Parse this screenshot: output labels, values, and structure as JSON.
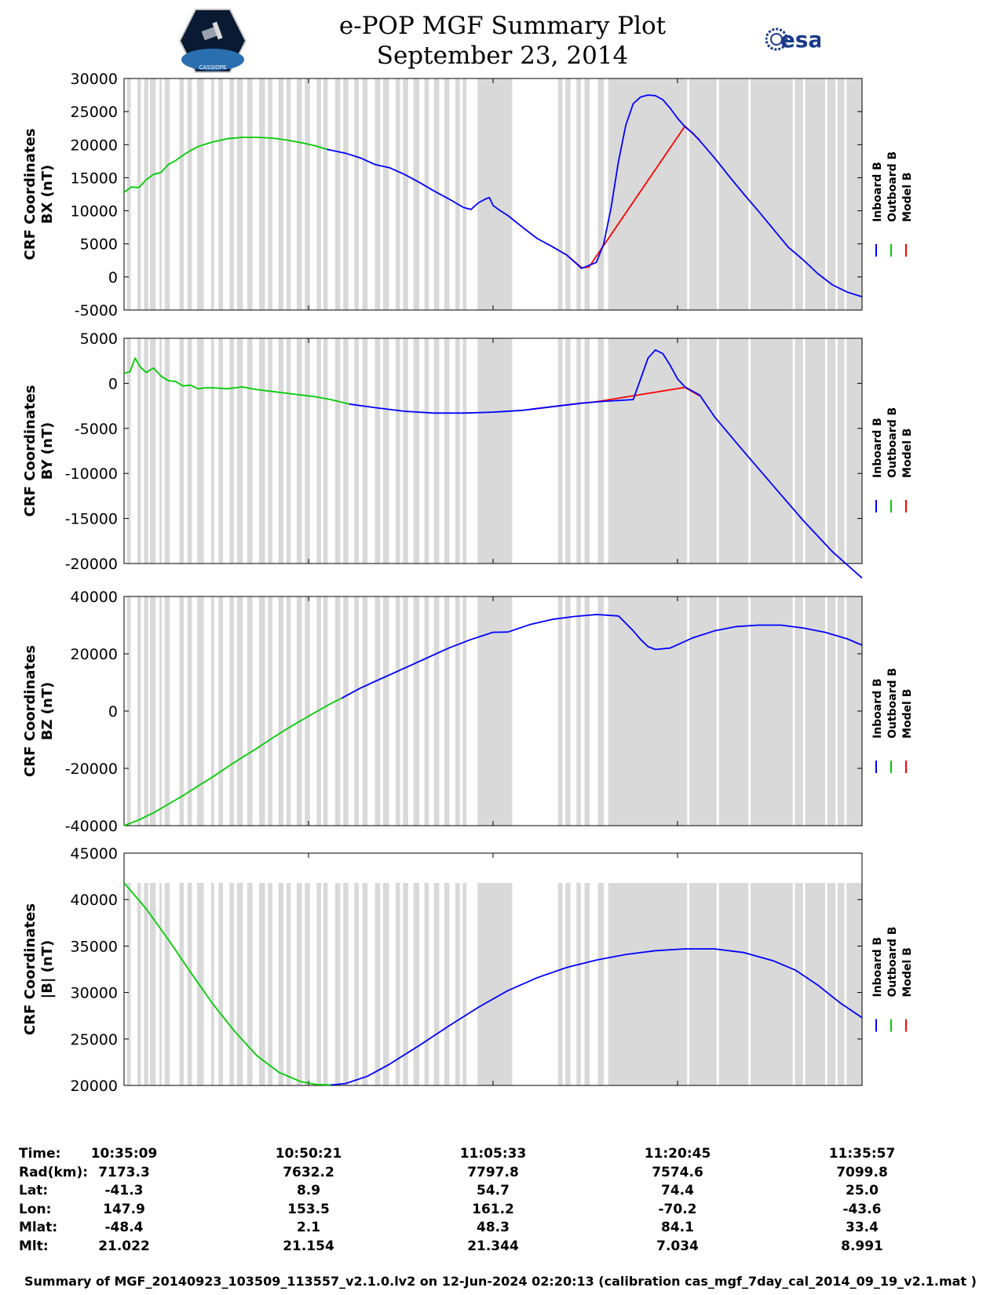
{
  "header": {
    "title": "e-POP MGF Summary Plot",
    "date": "September 23, 2014",
    "logo_left": "CASSIOPE",
    "logo_right": "esa"
  },
  "legend": [
    {
      "label": "Inboard B",
      "color": "#0000ff"
    },
    {
      "label": "Outboard B",
      "color": "#00cc00"
    },
    {
      "label": "Model B",
      "color": "#ff0000"
    }
  ],
  "chart_data": [
    {
      "type": "line",
      "ylabel_line1": "CRF Coordinates",
      "ylabel_line2": "BX (nT)",
      "ylim": [
        -5000,
        30000
      ],
      "yticks": [
        30000,
        25000,
        20000,
        15000,
        10000,
        5000,
        0,
        -5000
      ],
      "xlim": [
        0,
        100
      ],
      "switch_x": 27.5,
      "series": [
        {
          "name": "Outboard B",
          "color": "#00cc00",
          "x": [
            0,
            1,
            2,
            3,
            4,
            5,
            6,
            7,
            8,
            9,
            10,
            12,
            14,
            16,
            18,
            20,
            22,
            24,
            26,
            27.5
          ],
          "y": [
            12800,
            13600,
            13500,
            14700,
            15500,
            15800,
            17000,
            17600,
            18400,
            19100,
            19700,
            20400,
            20900,
            21100,
            21100,
            21000,
            20700,
            20300,
            19800,
            19300
          ]
        },
        {
          "name": "Inboard B",
          "color": "#0000ff",
          "x": [
            27.5,
            30,
            32,
            34,
            36,
            38,
            40,
            42,
            44,
            46,
            47,
            48,
            49,
            49.5,
            50,
            51,
            52,
            54,
            56,
            58,
            60,
            62,
            64,
            65,
            66,
            67,
            68,
            69,
            70,
            71,
            72,
            73,
            74,
            75,
            76,
            77,
            78,
            80,
            82,
            84,
            86,
            88,
            90,
            92,
            94,
            96,
            98,
            100
          ],
          "y": [
            19300,
            18700,
            18000,
            17000,
            16500,
            15500,
            14300,
            13000,
            11800,
            10500,
            10200,
            11200,
            11800,
            12000,
            10800,
            10000,
            9300,
            7500,
            5800,
            4600,
            3300,
            1300,
            2200,
            5000,
            10500,
            17500,
            23000,
            26200,
            27200,
            27500,
            27400,
            26800,
            25500,
            24000,
            22700,
            21800,
            20600,
            18000,
            15200,
            12500,
            9900,
            7200,
            4500,
            2600,
            500,
            -1200,
            -2300,
            -3000
          ]
        },
        {
          "name": "Model B",
          "color": "#ff0000",
          "x": [
            58,
            60,
            62,
            63,
            76,
            78
          ],
          "y": [
            4600,
            3300,
            1400,
            1500,
            22800,
            20700
          ]
        }
      ]
    },
    {
      "type": "line",
      "ylabel_line1": "CRF Coordinates",
      "ylabel_line2": "BY (nT)",
      "ylim": [
        -20000,
        5000
      ],
      "yticks": [
        5000,
        0,
        -5000,
        -10000,
        -15000,
        -20000
      ],
      "xlim": [
        0,
        100
      ],
      "switch_x": 30.5,
      "series": [
        {
          "name": "Outboard B",
          "color": "#00cc00",
          "x": [
            0,
            0.8,
            1.5,
            2.2,
            3,
            4,
            5,
            6,
            7,
            8,
            9,
            10,
            11,
            12,
            14,
            16,
            18,
            20,
            22,
            24,
            26,
            28,
            30.5
          ],
          "y": [
            1100,
            1300,
            2800,
            1800,
            1200,
            1700,
            800,
            300,
            200,
            -300,
            -200,
            -600,
            -500,
            -500,
            -600,
            -400,
            -700,
            -900,
            -1100,
            -1300,
            -1500,
            -1800,
            -2300
          ]
        },
        {
          "name": "Inboard B",
          "color": "#0000ff",
          "x": [
            30.5,
            34,
            38,
            42,
            46,
            50,
            54,
            58,
            62,
            65,
            69,
            70,
            71,
            72,
            73,
            74,
            75,
            76,
            78,
            80,
            84,
            88,
            92,
            96,
            100
          ],
          "y": [
            -2300,
            -2700,
            -3100,
            -3300,
            -3300,
            -3200,
            -3000,
            -2600,
            -2200,
            -2000,
            -1800,
            500,
            2800,
            3700,
            3300,
            2000,
            500,
            -400,
            -1300,
            -3700,
            -7600,
            -11400,
            -15200,
            -18700,
            -21600
          ]
        },
        {
          "name": "Model B",
          "color": "#ff0000",
          "x": [
            55,
            58,
            62,
            64,
            76,
            78
          ],
          "y": [
            -2900,
            -2600,
            -2200,
            -2050,
            -450,
            -1400
          ]
        }
      ]
    },
    {
      "type": "line",
      "ylabel_line1": "CRF Coordinates",
      "ylabel_line2": "BZ (nT)",
      "ylim": [
        -40000,
        40000
      ],
      "yticks": [
        40000,
        20000,
        0,
        -20000,
        -40000
      ],
      "xlim": [
        0,
        100
      ],
      "switch_x": 29.5,
      "series": [
        {
          "name": "Outboard B",
          "color": "#00cc00",
          "x": [
            0,
            2,
            4,
            6,
            8,
            10,
            12,
            14,
            16,
            18,
            20,
            22,
            24,
            26,
            28,
            29.5
          ],
          "y": [
            -40000,
            -38000,
            -35500,
            -32500,
            -29500,
            -26200,
            -23000,
            -19500,
            -16200,
            -13000,
            -9600,
            -6300,
            -3300,
            -300,
            2600,
            4500
          ]
        },
        {
          "name": "Inboard B",
          "color": "#0000ff",
          "x": [
            29.5,
            32,
            35,
            38,
            41,
            44,
            47,
            50,
            52,
            55,
            58,
            61,
            64,
            67,
            69,
            70,
            71,
            72,
            74,
            77,
            80,
            83,
            86,
            89,
            92,
            95,
            98,
            100
          ],
          "y": [
            4500,
            8000,
            11500,
            15000,
            18500,
            22000,
            25000,
            27500,
            27600,
            30200,
            32000,
            33000,
            33700,
            33200,
            28000,
            25000,
            22500,
            21500,
            22000,
            25500,
            28000,
            29500,
            30000,
            30000,
            29000,
            27500,
            25200,
            23000
          ]
        }
      ]
    },
    {
      "type": "line",
      "ylabel_line1": "CRF Coordinates",
      "ylabel_line2": "|B| (nT)",
      "ylim": [
        20000,
        45000
      ],
      "yticks": [
        45000,
        40000,
        35000,
        30000,
        25000,
        20000
      ],
      "xlim": [
        0,
        100
      ],
      "switch_x": 28,
      "series": [
        {
          "name": "Outboard B",
          "color": "#00cc00",
          "x": [
            0,
            3,
            6,
            9,
            12,
            15,
            18,
            21,
            24,
            26,
            28
          ],
          "y": [
            41800,
            39000,
            35700,
            32200,
            28800,
            25800,
            23200,
            21400,
            20400,
            20100,
            20050
          ]
        },
        {
          "name": "Inboard B",
          "color": "#0000ff",
          "x": [
            28,
            30,
            33,
            36,
            40,
            44,
            48,
            52,
            56,
            60,
            64,
            68,
            72,
            76,
            80,
            84,
            88,
            91,
            94,
            97,
            100
          ],
          "y": [
            20050,
            20200,
            21000,
            22300,
            24300,
            26400,
            28400,
            30200,
            31600,
            32700,
            33500,
            34100,
            34500,
            34700,
            34700,
            34300,
            33400,
            32400,
            30800,
            28900,
            27300
          ]
        }
      ]
    }
  ],
  "footer": {
    "rows": [
      {
        "label": "Time:",
        "values": [
          "10:35:09",
          "10:50:21",
          "11:05:33",
          "11:20:45",
          "11:35:57"
        ]
      },
      {
        "label": "Rad(km):",
        "values": [
          "7173.3",
          "7632.2",
          "7797.8",
          "7574.6",
          "7099.8"
        ]
      },
      {
        "label": "Lat:",
        "values": [
          "-41.3",
          "8.9",
          "54.7",
          "74.4",
          "25.0"
        ]
      },
      {
        "label": "Lon:",
        "values": [
          "147.9",
          "153.5",
          "161.2",
          "-70.2",
          "-43.6"
        ]
      },
      {
        "label": "Mlat:",
        "values": [
          "-48.4",
          "2.1",
          "48.3",
          "84.1",
          "33.4"
        ]
      },
      {
        "label": "Mlt:",
        "values": [
          "21.022",
          "21.154",
          "21.344",
          "7.034",
          "8.991"
        ]
      }
    ],
    "note": "Summary of MGF_20140923_103509_113557_v2.1.0.lv2 on 12-Jun-2024 02:20:13 (calibration cas_mgf_7day_cal_2014_09_19_v2.1.mat )"
  }
}
